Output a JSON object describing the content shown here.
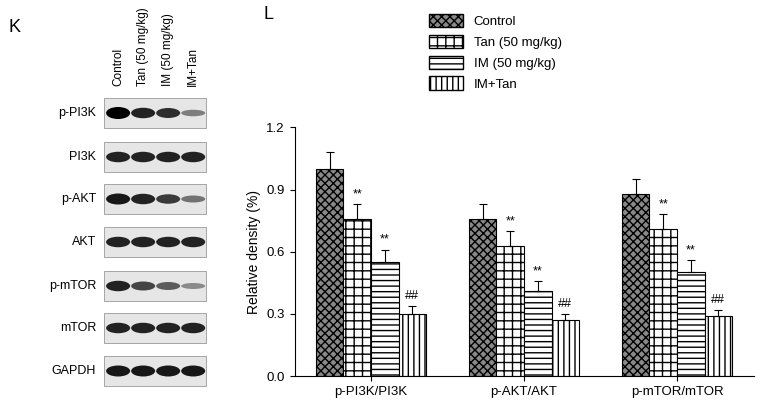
{
  "blot": {
    "panel": "K",
    "lanes": [
      "Control",
      "Tan (50 mg/kg)",
      "IM (50 mg/kg)",
      "IM+Tan"
    ],
    "rows": [
      "p-PI3K",
      "PI3K",
      "p-AKT",
      "AKT",
      "p-mTOR",
      "mTOR",
      "GAPDH"
    ]
  },
  "chart_data": {
    "panel": "L",
    "type": "bar",
    "y_label": "Relative density (%)",
    "categories": [
      "p-PI3K/PI3K",
      "p-AKT/AKT",
      "p-mTOR/mTOR"
    ],
    "series": [
      {
        "name": "Control",
        "values": [
          1.0,
          0.76,
          0.88
        ],
        "errors": [
          0.08,
          0.07,
          0.07
        ]
      },
      {
        "name": "Tan (50 mg/kg)",
        "values": [
          0.76,
          0.63,
          0.71
        ],
        "errors": [
          0.07,
          0.07,
          0.07
        ],
        "annotations": [
          "**",
          "**",
          "**"
        ]
      },
      {
        "name": "IM (50 mg/kg)",
        "values": [
          0.55,
          0.41,
          0.5
        ],
        "errors": [
          0.06,
          0.05,
          0.06
        ],
        "annotations": [
          "**",
          "**",
          "**"
        ]
      },
      {
        "name": "IM+Tan",
        "values": [
          0.3,
          0.27,
          0.29
        ],
        "errors": [
          0.04,
          0.03,
          0.03
        ],
        "annotations": [
          "##",
          "##",
          "##"
        ]
      }
    ],
    "ylim": [
      0,
      1.2
    ],
    "yticks": [
      {
        "value": 0,
        "label": "0.0"
      },
      0.3,
      0.6,
      0.9,
      1.2
    ],
    "legend": "upper left"
  }
}
